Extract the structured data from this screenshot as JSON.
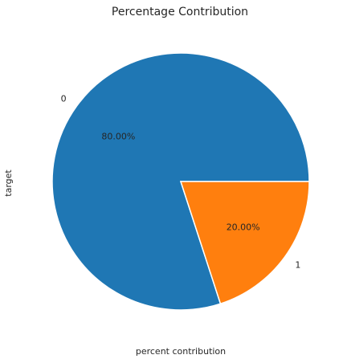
{
  "chart_data": {
    "type": "pie",
    "title": "Percentage Contribution",
    "xlabel": "percent contribution",
    "ylabel": "target",
    "categories": [
      "0",
      "1"
    ],
    "values": [
      80.0,
      20.0
    ],
    "percent_labels": [
      "80.00%",
      "20.00%"
    ],
    "colors": [
      "#1f77b4",
      "#ff7f0e"
    ],
    "legend": "none"
  }
}
